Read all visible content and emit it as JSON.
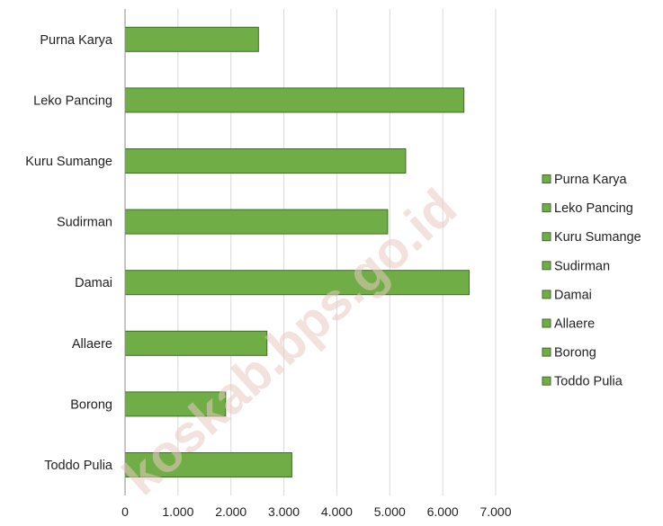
{
  "chart_data": {
    "type": "bar",
    "orientation": "horizontal",
    "categories": [
      "Purna Karya",
      "Leko Pancing",
      "Kuru Sumange",
      "Sudirman",
      "Damai",
      "Allaere",
      "Borong",
      "Toddo Pulia"
    ],
    "values": [
      2520,
      6400,
      5300,
      4960,
      6500,
      2680,
      1900,
      3150
    ],
    "xlim": [
      0,
      7000
    ],
    "x_ticks": [
      0,
      1000,
      2000,
      3000,
      4000,
      5000,
      6000,
      7000
    ],
    "x_tick_labels": [
      "0",
      "1.000",
      "2.000",
      "3.000",
      "4.000",
      "5.000",
      "6.000",
      "7.000"
    ],
    "grid": "vertical",
    "legend": {
      "placement": "right",
      "entries": [
        "Purna Karya",
        "Leko Pancing",
        "Kuru Sumange",
        "Sudirman",
        "Damai",
        "Allaere",
        "Borong",
        "Toddo Pulia"
      ]
    },
    "title": "",
    "xlabel": "",
    "ylabel": ""
  },
  "colors": {
    "bar_fill": "#70ad47",
    "bar_stroke": "#3f6e26",
    "grid": "#d9d9d9",
    "axis": "#8c8c8c"
  },
  "watermark": "koskab.bps.go.id"
}
